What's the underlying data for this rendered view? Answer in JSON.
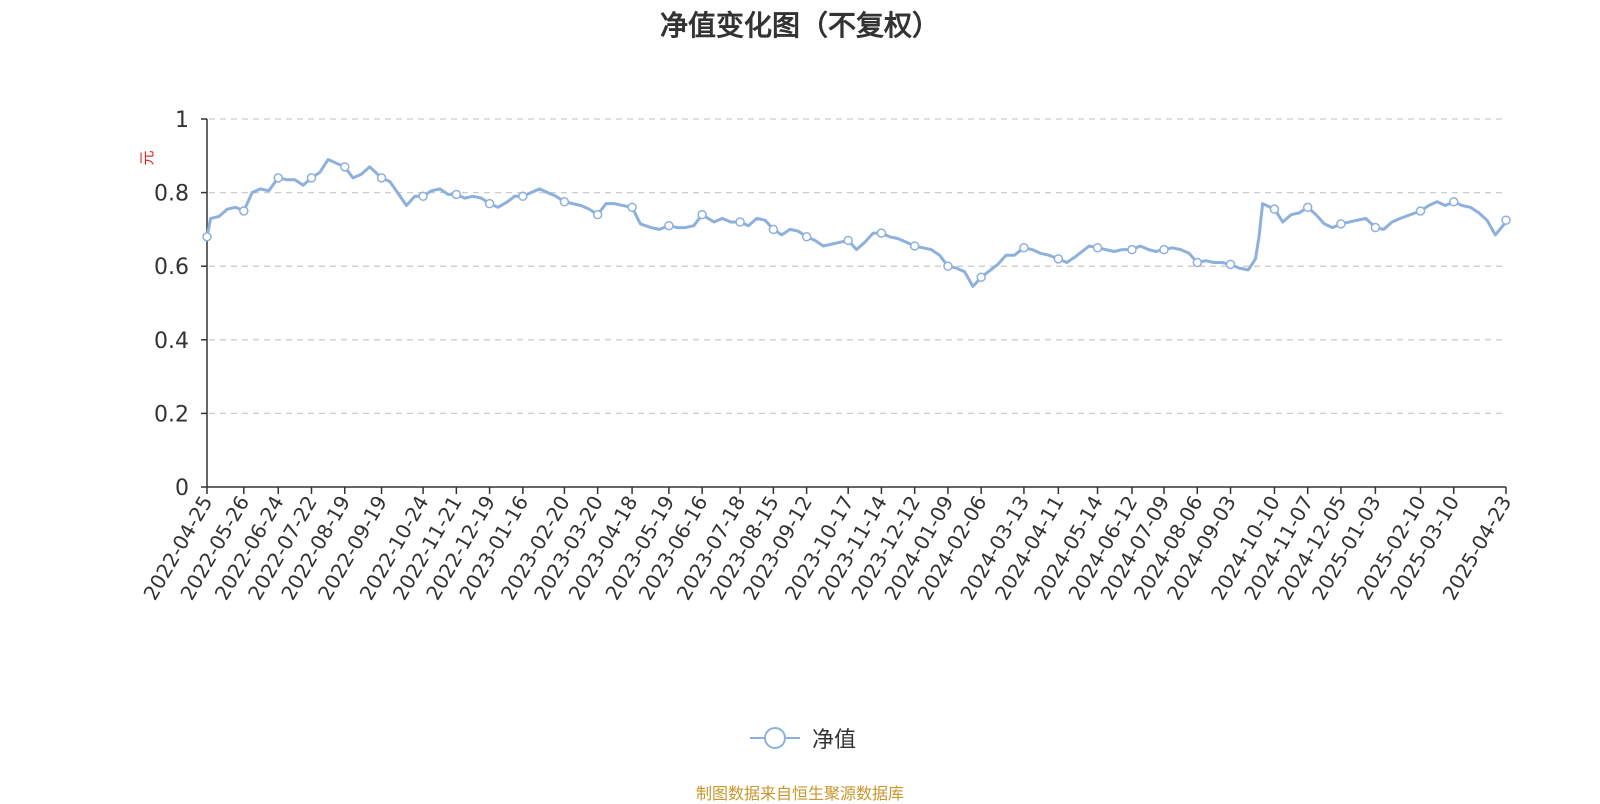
{
  "chart_data": {
    "type": "line",
    "title": "净值变化图（不复权）",
    "ylabel": "元",
    "xlabel": "",
    "ylim": [
      0,
      1
    ],
    "yticks": [
      "0",
      "0.2",
      "0.4",
      "0.6",
      "0.8",
      "1"
    ],
    "grid": true,
    "legend_position": "bottom-center",
    "x_tick_labels": [
      "2022-04-25",
      "2022-05-26",
      "2022-06-24",
      "2022-07-22",
      "2022-08-19",
      "2022-09-19",
      "2022-10-24",
      "2022-11-21",
      "2022-12-19",
      "2023-01-16",
      "2023-02-20",
      "2023-03-20",
      "2023-04-18",
      "2023-05-19",
      "2023-06-16",
      "2023-07-18",
      "2023-08-15",
      "2023-09-12",
      "2023-10-17",
      "2023-11-14",
      "2023-12-12",
      "2024-01-09",
      "2024-02-06",
      "2024-03-13",
      "2024-04-11",
      "2024-05-14",
      "2024-06-12",
      "2024-07-09",
      "2024-08-06",
      "2024-09-03",
      "2024-10-10",
      "2024-11-07",
      "2024-12-05",
      "2025-01-03",
      "2025-02-10",
      "2025-03-10",
      "2025-04-23"
    ],
    "series": [
      {
        "name": "净值",
        "color": "#8eb0dc",
        "x": [
          "2022-04-25",
          "2022-05-26",
          "2022-06-24",
          "2022-07-22",
          "2022-08-19",
          "2022-09-19",
          "2022-10-24",
          "2022-11-21",
          "2022-12-19",
          "2023-01-16",
          "2023-02-20",
          "2023-03-20",
          "2023-04-18",
          "2023-05-19",
          "2023-06-16",
          "2023-07-18",
          "2023-08-15",
          "2023-09-12",
          "2023-10-17",
          "2023-11-14",
          "2023-12-12",
          "2024-01-09",
          "2024-02-06",
          "2024-03-13",
          "2024-04-11",
          "2024-05-14",
          "2024-06-12",
          "2024-07-09",
          "2024-08-06",
          "2024-09-03",
          "2024-10-10",
          "2024-11-07",
          "2024-12-05",
          "2025-01-03",
          "2025-02-10",
          "2025-03-10",
          "2025-04-23"
        ],
        "values": [
          0.68,
          0.75,
          0.84,
          0.84,
          0.87,
          0.84,
          0.79,
          0.795,
          0.77,
          0.79,
          0.775,
          0.74,
          0.76,
          0.71,
          0.74,
          0.72,
          0.7,
          0.68,
          0.67,
          0.69,
          0.655,
          0.6,
          0.57,
          0.65,
          0.62,
          0.65,
          0.645,
          0.645,
          0.61,
          0.605,
          0.755,
          0.76,
          0.715,
          0.705,
          0.75,
          0.775,
          0.725
        ],
        "line_x": [
          "2022-04-25",
          "2022-04-28",
          "2022-05-05",
          "2022-05-12",
          "2022-05-19",
          "2022-05-26",
          "2022-06-02",
          "2022-06-09",
          "2022-06-16",
          "2022-06-24",
          "2022-07-01",
          "2022-07-08",
          "2022-07-15",
          "2022-07-22",
          "2022-07-29",
          "2022-08-05",
          "2022-08-12",
          "2022-08-19",
          "2022-08-26",
          "2022-09-02",
          "2022-09-09",
          "2022-09-19",
          "2022-09-26",
          "2022-10-10",
          "2022-10-17",
          "2022-10-24",
          "2022-10-31",
          "2022-11-07",
          "2022-11-14",
          "2022-11-21",
          "2022-11-28",
          "2022-12-05",
          "2022-12-12",
          "2022-12-19",
          "2022-12-26",
          "2023-01-03",
          "2023-01-09",
          "2023-01-16",
          "2023-01-30",
          "2023-02-06",
          "2023-02-13",
          "2023-02-20",
          "2023-02-27",
          "2023-03-06",
          "2023-03-13",
          "2023-03-20",
          "2023-03-27",
          "2023-04-03",
          "2023-04-10",
          "2023-04-18",
          "2023-04-25",
          "2023-05-04",
          "2023-05-11",
          "2023-05-19",
          "2023-05-26",
          "2023-06-02",
          "2023-06-09",
          "2023-06-16",
          "2023-06-26",
          "2023-07-03",
          "2023-07-10",
          "2023-07-18",
          "2023-07-25",
          "2023-08-01",
          "2023-08-08",
          "2023-08-15",
          "2023-08-22",
          "2023-08-29",
          "2023-09-05",
          "2023-09-12",
          "2023-09-19",
          "2023-09-26",
          "2023-10-10",
          "2023-10-17",
          "2023-10-24",
          "2023-10-31",
          "2023-11-07",
          "2023-11-14",
          "2023-11-21",
          "2023-11-28",
          "2023-12-05",
          "2023-12-12",
          "2023-12-19",
          "2023-12-26",
          "2024-01-02",
          "2024-01-09",
          "2024-01-16",
          "2024-01-23",
          "2024-01-30",
          "2024-02-06",
          "2024-02-20",
          "2024-02-27",
          "2024-03-05",
          "2024-03-13",
          "2024-03-20",
          "2024-03-27",
          "2024-04-03",
          "2024-04-11",
          "2024-04-18",
          "2024-04-25",
          "2024-05-07",
          "2024-05-14",
          "2024-05-21",
          "2024-05-28",
          "2024-06-04",
          "2024-06-12",
          "2024-06-19",
          "2024-06-26",
          "2024-07-02",
          "2024-07-09",
          "2024-07-16",
          "2024-07-23",
          "2024-07-30",
          "2024-08-06",
          "2024-08-13",
          "2024-08-20",
          "2024-08-27",
          "2024-09-03",
          "2024-09-10",
          "2024-09-18",
          "2024-09-24",
          "2024-09-27",
          "2024-09-30",
          "2024-10-10",
          "2024-10-17",
          "2024-10-24",
          "2024-10-31",
          "2024-11-07",
          "2024-11-14",
          "2024-11-21",
          "2024-11-28",
          "2024-12-05",
          "2024-12-12",
          "2024-12-19",
          "2024-12-26",
          "2025-01-03",
          "2025-01-10",
          "2025-01-17",
          "2025-01-24",
          "2025-02-10",
          "2025-02-17",
          "2025-02-24",
          "2025-03-03",
          "2025-03-10",
          "2025-03-17",
          "2025-03-24",
          "2025-03-31",
          "2025-04-07",
          "2025-04-14",
          "2025-04-23"
        ],
        "line_values": [
          0.68,
          0.73,
          0.735,
          0.755,
          0.76,
          0.75,
          0.8,
          0.81,
          0.805,
          0.84,
          0.835,
          0.835,
          0.82,
          0.84,
          0.855,
          0.89,
          0.88,
          0.87,
          0.84,
          0.85,
          0.87,
          0.84,
          0.83,
          0.765,
          0.79,
          0.79,
          0.805,
          0.81,
          0.795,
          0.795,
          0.785,
          0.79,
          0.785,
          0.77,
          0.76,
          0.775,
          0.79,
          0.79,
          0.81,
          0.8,
          0.79,
          0.775,
          0.77,
          0.765,
          0.755,
          0.74,
          0.77,
          0.77,
          0.765,
          0.76,
          0.715,
          0.705,
          0.7,
          0.71,
          0.705,
          0.705,
          0.71,
          0.74,
          0.72,
          0.73,
          0.72,
          0.72,
          0.71,
          0.73,
          0.725,
          0.7,
          0.685,
          0.7,
          0.695,
          0.68,
          0.67,
          0.655,
          0.665,
          0.67,
          0.645,
          0.665,
          0.69,
          0.69,
          0.68,
          0.675,
          0.665,
          0.655,
          0.65,
          0.645,
          0.63,
          0.6,
          0.595,
          0.585,
          0.545,
          0.57,
          0.605,
          0.63,
          0.63,
          0.65,
          0.645,
          0.635,
          0.63,
          0.62,
          0.61,
          0.625,
          0.655,
          0.65,
          0.645,
          0.64,
          0.645,
          0.645,
          0.655,
          0.645,
          0.64,
          0.645,
          0.65,
          0.645,
          0.635,
          0.61,
          0.615,
          0.61,
          0.61,
          0.605,
          0.595,
          0.59,
          0.62,
          0.68,
          0.77,
          0.755,
          0.72,
          0.74,
          0.745,
          0.76,
          0.74,
          0.715,
          0.705,
          0.715,
          0.72,
          0.725,
          0.73,
          0.705,
          0.7,
          0.72,
          0.73,
          0.75,
          0.765,
          0.775,
          0.765,
          0.775,
          0.765,
          0.76,
          0.745,
          0.725,
          0.685,
          0.72,
          0.725
        ]
      }
    ]
  },
  "legend": {
    "label": "净值"
  },
  "source_note": "制图数据来自恒生聚源数据库"
}
